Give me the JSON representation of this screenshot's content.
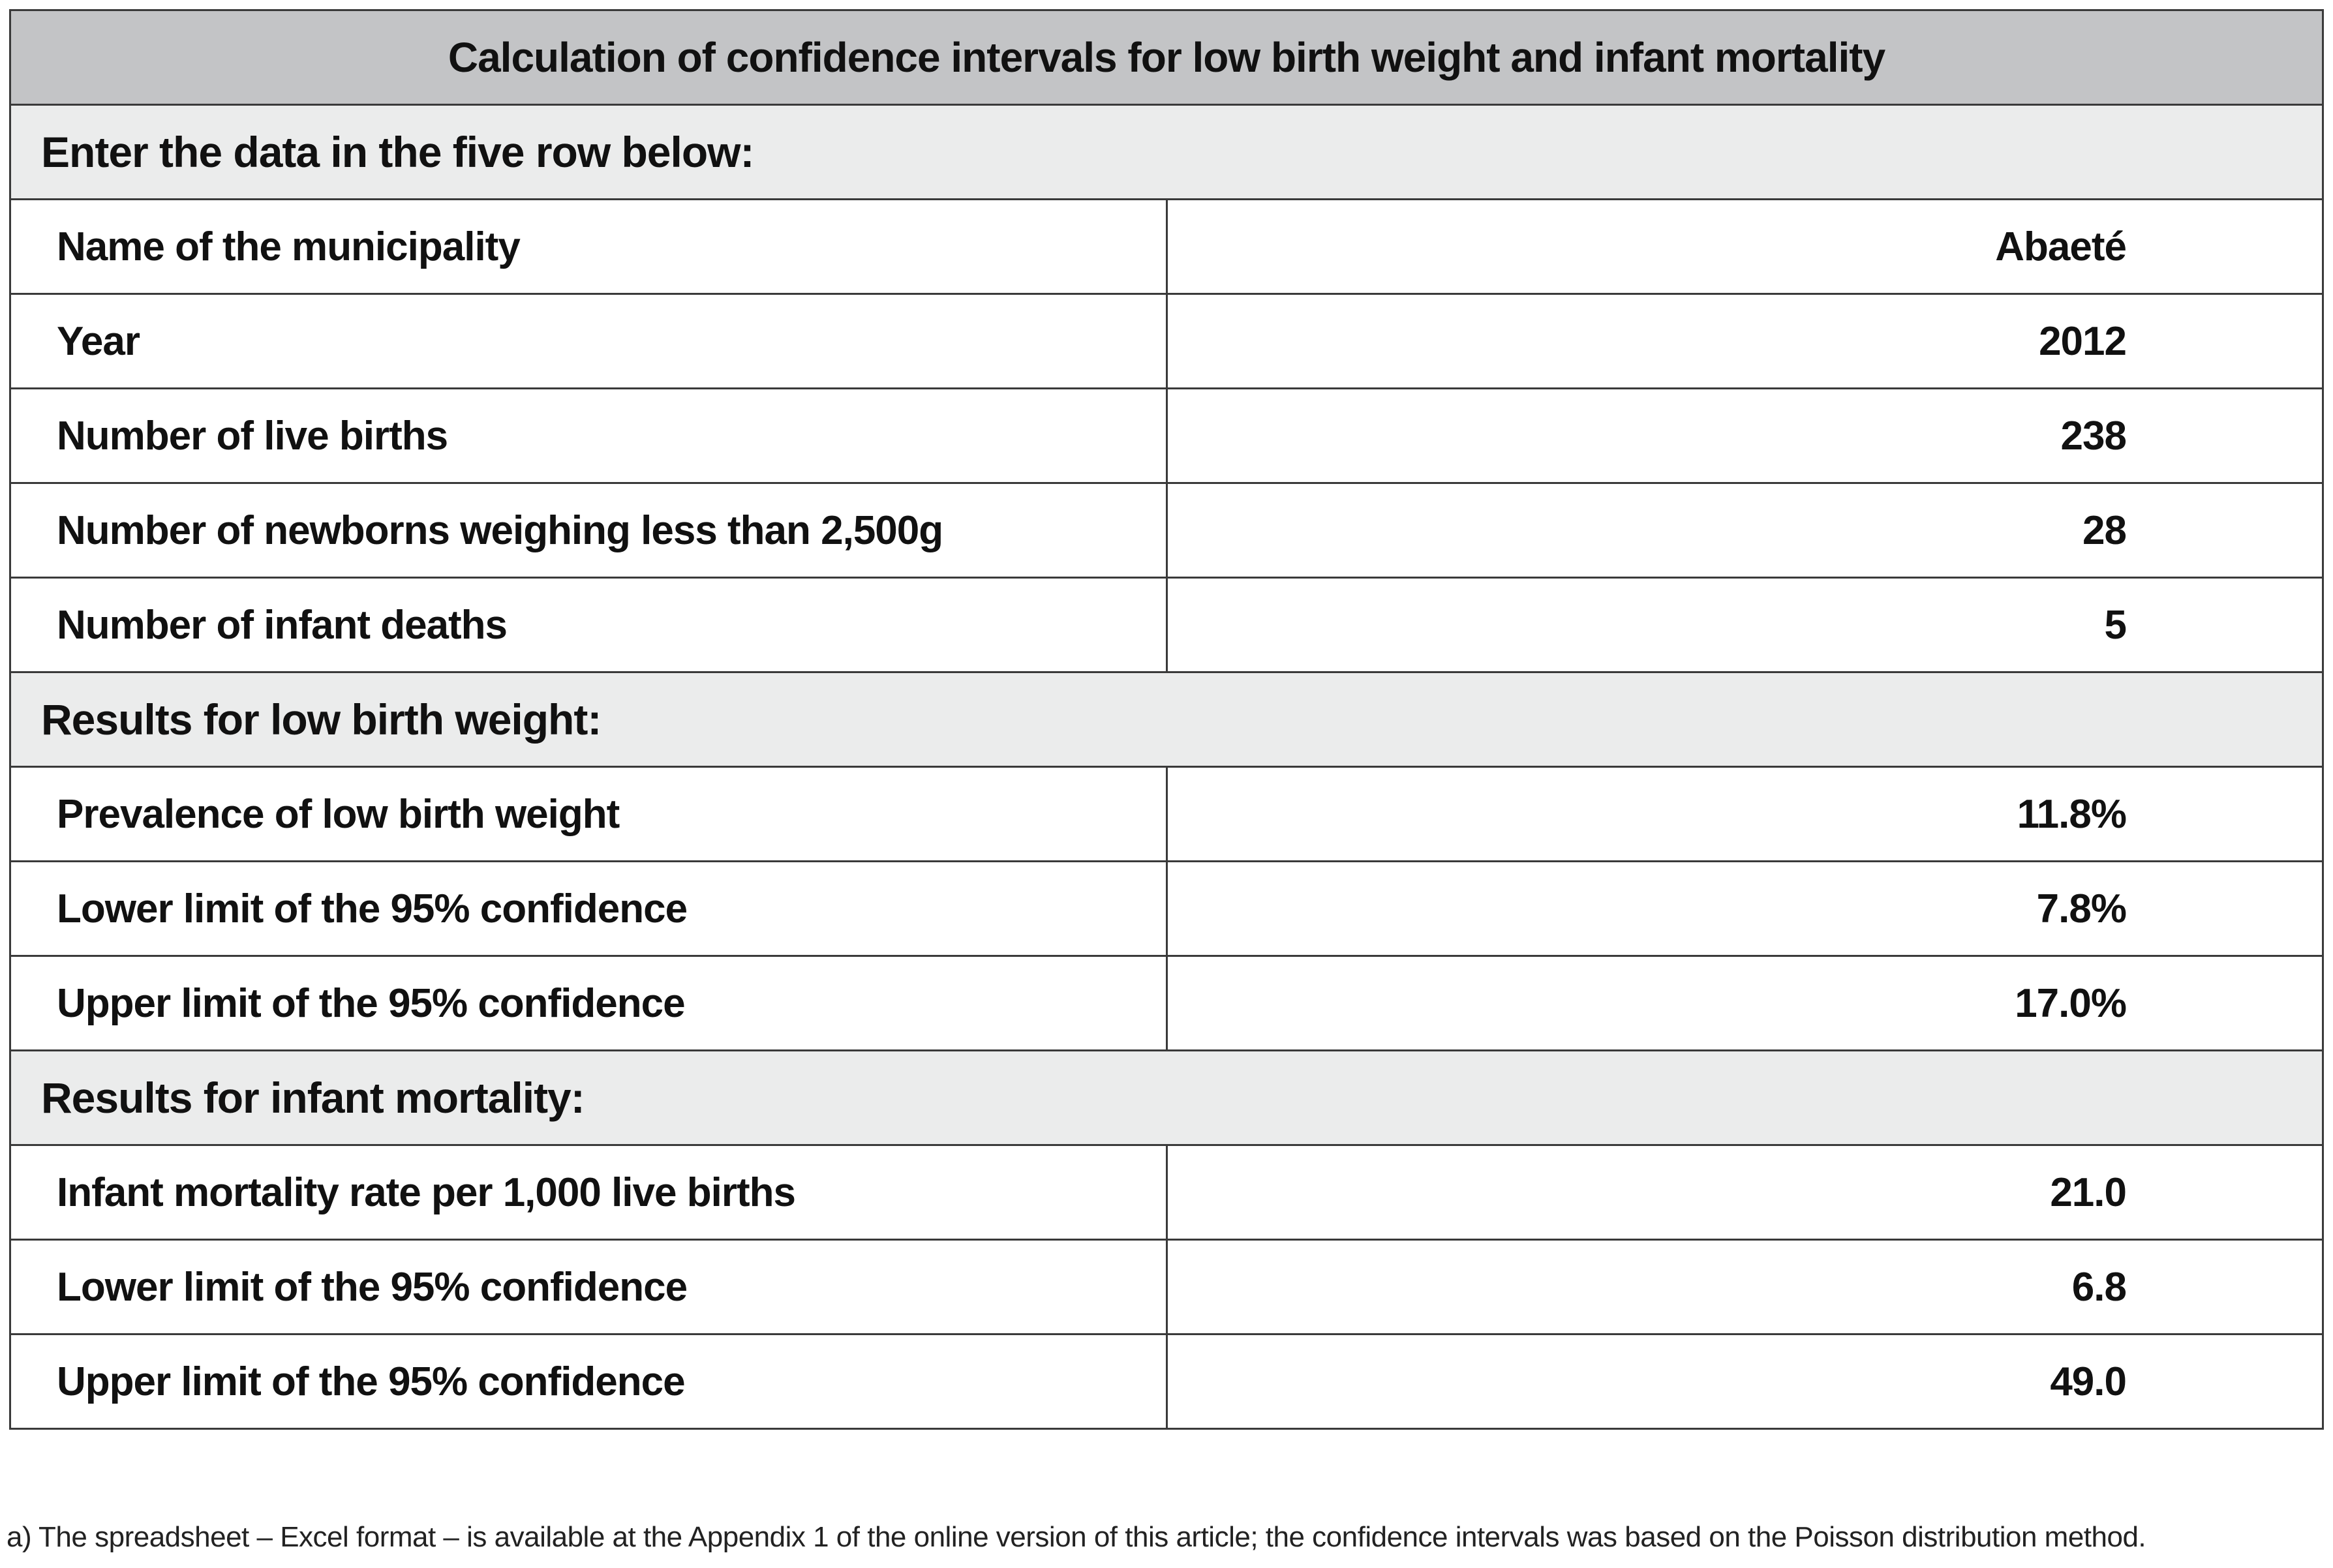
{
  "title": "Calculation of confidence intervals for low birth weight and infant mortality",
  "sections": [
    {
      "heading": "Enter the data in the five row below:",
      "rows": [
        {
          "label": "Name of the municipality",
          "value": "Abaeté"
        },
        {
          "label": "Year",
          "value": "2012"
        },
        {
          "label": "Number of live births",
          "value": "238"
        },
        {
          "label": "Number of newborns weighing less than 2,500g",
          "value": "28"
        },
        {
          "label": "Number of infant deaths",
          "value": "5"
        }
      ]
    },
    {
      "heading": "Results for low birth weight:",
      "rows": [
        {
          "label": "Prevalence of low birth weight",
          "value": "11.8%"
        },
        {
          "label": "Lower limit of the 95% confidence",
          "value": "7.8%"
        },
        {
          "label": "Upper limit of the 95% confidence",
          "value": "17.0%"
        }
      ]
    },
    {
      "heading": "Results for infant mortality:",
      "rows": [
        {
          "label": "Infant mortality rate per 1,000 live births",
          "value": "21.0"
        },
        {
          "label": "Lower limit of the 95% confidence",
          "value": "6.8"
        },
        {
          "label": "Upper limit of the 95% confidence",
          "value": "49.0"
        }
      ]
    }
  ],
  "footnote": "a) The spreadsheet – Excel format – is available at the Appendix 1 of the online version of this article; the confidence intervals was based on the Poisson distribution method."
}
